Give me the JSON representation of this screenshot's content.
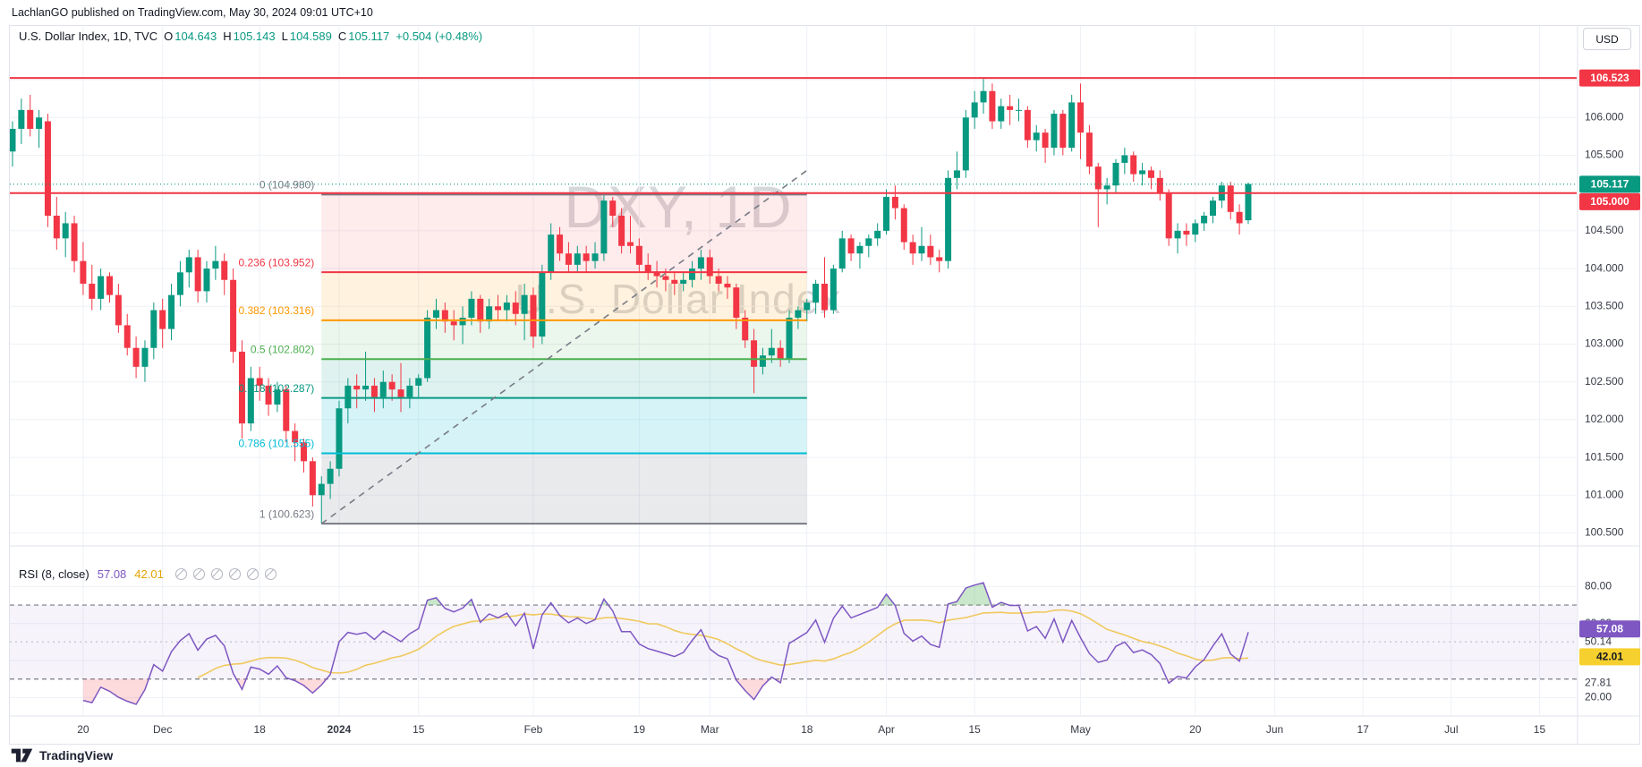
{
  "header": {
    "published_line": "LachlanGO published on TradingView.com, May 30, 2024 09:01 UTC+10"
  },
  "legend": {
    "symbol": "U.S. Dollar Index, 1D, TVC",
    "o_label": "O",
    "o_value": "104.643",
    "h_label": "H",
    "h_value": "105.143",
    "l_label": "L",
    "l_value": "104.589",
    "c_label": "C",
    "c_value": "105.117",
    "change": "+0.504 (+0.48%)"
  },
  "watermark": {
    "line1": "DXY, 1D",
    "line2": "U.S. Dollar Index"
  },
  "currency_button": "USD",
  "rsi_legend": {
    "title": "RSI (8, close)",
    "value": "57.08",
    "ma_value": "42.01",
    "extra_circles": 6
  },
  "footer": {
    "logo_text": "TradingView"
  },
  "colors": {
    "up": "#089981",
    "down": "#f23645",
    "line_red": "#f23645",
    "current_price": "#089981",
    "rsi_line": "#7e57c2",
    "rsi_ma_line": "#f0c95c",
    "rsi_badge": "#7e57c2",
    "rsi_ma_badge": "#f6d02f",
    "grid": "#eef1f7",
    "axis_text": "#363a45",
    "watermark": "#9598a1",
    "border": "#e0e3eb"
  },
  "chart_data": {
    "type": "candlestick",
    "symbol": "U.S. Dollar Index",
    "interval": "1D",
    "exchange": "TVC",
    "ohlc_readout": {
      "open": 104.643,
      "high": 105.143,
      "low": 104.589,
      "close": 105.117,
      "change": "+0.504 (+0.48%)"
    },
    "ylim_main": [
      100.3,
      107.0
    ],
    "candles": [
      [
        105.55,
        105.95,
        105.35,
        105.85
      ],
      [
        105.85,
        106.25,
        105.65,
        106.1
      ],
      [
        106.1,
        106.3,
        105.75,
        105.85
      ],
      [
        105.85,
        106.1,
        105.6,
        106.0
      ],
      [
        105.95,
        106.05,
        104.55,
        104.7
      ],
      [
        104.7,
        104.95,
        104.25,
        104.4
      ],
      [
        104.4,
        104.75,
        104.15,
        104.6
      ],
      [
        104.6,
        104.7,
        103.95,
        104.1
      ],
      [
        104.1,
        104.35,
        103.65,
        103.8
      ],
      [
        103.8,
        104.05,
        103.45,
        103.6
      ],
      [
        103.6,
        104.0,
        103.45,
        103.9
      ],
      [
        103.9,
        103.95,
        103.55,
        103.65
      ],
      [
        103.65,
        103.8,
        103.15,
        103.25
      ],
      [
        103.25,
        103.4,
        102.85,
        102.95
      ],
      [
        102.95,
        103.1,
        102.55,
        102.7
      ],
      [
        102.7,
        103.05,
        102.5,
        102.95
      ],
      [
        102.95,
        103.55,
        102.8,
        103.45
      ],
      [
        103.45,
        103.6,
        102.95,
        103.2
      ],
      [
        103.2,
        103.8,
        103.05,
        103.65
      ],
      [
        103.65,
        104.1,
        103.5,
        103.95
      ],
      [
        103.95,
        104.25,
        103.75,
        104.15
      ],
      [
        104.15,
        104.25,
        103.55,
        103.7
      ],
      [
        103.7,
        104.1,
        103.55,
        104.0
      ],
      [
        104.0,
        104.3,
        103.85,
        104.1
      ],
      [
        104.1,
        104.2,
        103.65,
        103.85
      ],
      [
        103.85,
        104.0,
        102.75,
        102.9
      ],
      [
        102.9,
        103.05,
        101.75,
        101.95
      ],
      [
        101.95,
        102.7,
        101.85,
        102.55
      ],
      [
        102.55,
        102.7,
        102.25,
        102.45
      ],
      [
        102.45,
        102.55,
        102.05,
        102.2
      ],
      [
        102.2,
        102.5,
        102.1,
        102.4
      ],
      [
        102.4,
        102.45,
        101.7,
        101.85
      ],
      [
        101.85,
        101.95,
        101.45,
        101.7
      ],
      [
        101.7,
        101.75,
        101.3,
        101.45
      ],
      [
        101.45,
        101.5,
        100.85,
        101.0
      ],
      [
        101.0,
        101.25,
        100.62,
        101.15
      ],
      [
        101.15,
        101.45,
        100.95,
        101.35
      ],
      [
        101.35,
        102.25,
        101.25,
        102.15
      ],
      [
        102.15,
        102.55,
        101.95,
        102.45
      ],
      [
        102.45,
        102.6,
        102.15,
        102.4
      ],
      [
        102.4,
        102.9,
        102.25,
        102.45
      ],
      [
        102.45,
        102.55,
        102.1,
        102.3
      ],
      [
        102.3,
        102.65,
        102.15,
        102.5
      ],
      [
        102.5,
        102.6,
        102.25,
        102.4
      ],
      [
        102.4,
        102.75,
        102.1,
        102.3
      ],
      [
        102.3,
        102.55,
        102.15,
        102.45
      ],
      [
        102.45,
        102.6,
        102.3,
        102.55
      ],
      [
        102.55,
        103.45,
        102.5,
        103.35
      ],
      [
        103.35,
        103.6,
        103.2,
        103.45
      ],
      [
        103.45,
        103.55,
        103.15,
        103.3
      ],
      [
        103.3,
        103.45,
        103.05,
        103.25
      ],
      [
        103.25,
        103.5,
        103.0,
        103.35
      ],
      [
        103.35,
        103.7,
        103.25,
        103.6
      ],
      [
        103.6,
        103.65,
        103.15,
        103.3
      ],
      [
        103.3,
        103.6,
        103.2,
        103.5
      ],
      [
        103.5,
        103.65,
        103.3,
        103.45
      ],
      [
        103.45,
        103.65,
        103.3,
        103.55
      ],
      [
        103.55,
        103.7,
        103.25,
        103.4
      ],
      [
        103.4,
        103.8,
        103.05,
        103.65
      ],
      [
        103.65,
        103.75,
        102.95,
        103.1
      ],
      [
        103.1,
        104.05,
        103.0,
        103.95
      ],
      [
        103.95,
        104.6,
        103.85,
        104.45
      ],
      [
        104.45,
        104.55,
        104.1,
        104.2
      ],
      [
        104.2,
        104.35,
        103.95,
        104.05
      ],
      [
        104.05,
        104.3,
        103.95,
        104.2
      ],
      [
        104.2,
        104.3,
        103.95,
        104.1
      ],
      [
        104.1,
        104.35,
        104.0,
        104.2
      ],
      [
        104.2,
        104.97,
        104.1,
        104.9
      ],
      [
        104.9,
        104.95,
        104.55,
        104.7
      ],
      [
        104.7,
        104.8,
        104.2,
        104.3
      ],
      [
        104.35,
        104.7,
        104.2,
        104.3
      ],
      [
        104.3,
        104.4,
        103.95,
        104.05
      ],
      [
        104.05,
        104.2,
        103.85,
        103.95
      ],
      [
        103.95,
        104.1,
        103.75,
        103.9
      ],
      [
        103.9,
        104.0,
        103.7,
        103.85
      ],
      [
        103.85,
        103.95,
        103.65,
        103.8
      ],
      [
        103.8,
        103.95,
        103.7,
        103.85
      ],
      [
        103.85,
        104.1,
        103.75,
        104.0
      ],
      [
        104.0,
        104.25,
        103.85,
        104.15
      ],
      [
        104.15,
        104.25,
        103.8,
        103.9
      ],
      [
        103.9,
        104.0,
        103.7,
        103.8
      ],
      [
        103.8,
        103.9,
        103.6,
        103.75
      ],
      [
        103.75,
        103.8,
        103.2,
        103.35
      ],
      [
        103.35,
        103.45,
        102.95,
        103.05
      ],
      [
        103.05,
        103.2,
        102.35,
        102.7
      ],
      [
        102.7,
        102.95,
        102.6,
        102.85
      ],
      [
        102.85,
        103.2,
        102.75,
        102.95
      ],
      [
        102.95,
        103.05,
        102.7,
        102.8
      ],
      [
        102.8,
        103.45,
        102.75,
        103.35
      ],
      [
        103.35,
        103.5,
        103.2,
        103.45
      ],
      [
        103.45,
        103.6,
        103.3,
        103.55
      ],
      [
        103.55,
        103.85,
        103.4,
        103.8
      ],
      [
        103.8,
        104.15,
        103.35,
        103.45
      ],
      [
        103.45,
        104.05,
        103.4,
        104.0
      ],
      [
        104.0,
        104.5,
        103.95,
        104.4
      ],
      [
        104.4,
        104.45,
        104.1,
        104.2
      ],
      [
        104.2,
        104.35,
        104.0,
        104.3
      ],
      [
        104.3,
        104.45,
        104.15,
        104.4
      ],
      [
        104.4,
        104.6,
        104.3,
        104.5
      ],
      [
        104.5,
        105.05,
        104.45,
        104.95
      ],
      [
        104.95,
        105.1,
        104.65,
        104.8
      ],
      [
        104.8,
        104.85,
        104.25,
        104.35
      ],
      [
        104.35,
        104.45,
        104.05,
        104.2
      ],
      [
        104.2,
        104.55,
        104.1,
        104.3
      ],
      [
        104.3,
        104.45,
        104.05,
        104.15
      ],
      [
        104.15,
        104.25,
        103.95,
        104.1
      ],
      [
        104.1,
        105.3,
        104.0,
        105.2
      ],
      [
        105.2,
        105.55,
        105.05,
        105.3
      ],
      [
        105.3,
        106.1,
        105.2,
        106.0
      ],
      [
        106.0,
        106.35,
        105.85,
        106.2
      ],
      [
        106.2,
        106.51,
        106.05,
        106.35
      ],
      [
        106.35,
        106.45,
        105.85,
        105.95
      ],
      [
        105.95,
        106.25,
        105.85,
        106.15
      ],
      [
        106.15,
        106.3,
        105.9,
        106.1
      ],
      [
        106.1,
        106.25,
        105.95,
        106.1
      ],
      [
        106.1,
        106.15,
        105.6,
        105.7
      ],
      [
        105.7,
        105.9,
        105.55,
        105.8
      ],
      [
        105.8,
        105.85,
        105.4,
        105.6
      ],
      [
        105.6,
        106.1,
        105.5,
        106.05
      ],
      [
        106.05,
        106.1,
        105.5,
        105.6
      ],
      [
        105.6,
        106.3,
        105.55,
        106.2
      ],
      [
        106.2,
        106.45,
        105.45,
        105.8
      ],
      [
        105.8,
        105.9,
        105.25,
        105.35
      ],
      [
        105.35,
        105.4,
        104.55,
        105.05
      ],
      [
        105.05,
        105.2,
        104.85,
        105.1
      ],
      [
        105.1,
        105.45,
        105.0,
        105.4
      ],
      [
        105.4,
        105.6,
        105.25,
        105.5
      ],
      [
        105.5,
        105.55,
        105.15,
        105.25
      ],
      [
        105.25,
        105.4,
        105.1,
        105.3
      ],
      [
        105.3,
        105.35,
        105.05,
        105.2
      ],
      [
        105.2,
        105.3,
        104.9,
        105.0
      ],
      [
        105.0,
        105.05,
        104.3,
        104.4
      ],
      [
        104.4,
        104.6,
        104.2,
        104.5
      ],
      [
        104.5,
        104.6,
        104.3,
        104.45
      ],
      [
        104.45,
        104.65,
        104.35,
        104.6
      ],
      [
        104.6,
        104.75,
        104.5,
        104.7
      ],
      [
        104.7,
        104.95,
        104.6,
        104.9
      ],
      [
        104.9,
        105.15,
        104.8,
        105.1
      ],
      [
        105.1,
        105.15,
        104.65,
        104.75
      ],
      [
        104.75,
        104.85,
        104.45,
        104.6
      ],
      [
        104.64,
        105.14,
        104.59,
        105.12
      ]
    ],
    "fib": {
      "start_index": 35,
      "end_index": 90,
      "trend_to_price": 105.3,
      "levels": [
        {
          "ratio": "0",
          "value": "104.980",
          "price": 104.98,
          "color": "#787b86"
        },
        {
          "ratio": "0.236",
          "value": "103.952",
          "price": 103.952,
          "color": "#f23645"
        },
        {
          "ratio": "0.382",
          "value": "103.316",
          "price": 103.316,
          "color": "#ff9800"
        },
        {
          "ratio": "0.5",
          "value": "102.802",
          "price": 102.802,
          "color": "#4caf50"
        },
        {
          "ratio": "0.618",
          "value": "102.287",
          "price": 102.287,
          "color": "#089981"
        },
        {
          "ratio": "0.786",
          "value": "101.555",
          "price": 101.555,
          "color": "#00bcd4"
        },
        {
          "ratio": "1",
          "value": "100.623",
          "price": 100.623,
          "color": "#787b86"
        }
      ],
      "zone_fills": [
        "rgba(242,54,69,0.10)",
        "rgba(255,152,0,0.13)",
        "rgba(76,175,80,0.11)",
        "rgba(8,153,129,0.13)",
        "rgba(0,188,212,0.16)",
        "rgba(120,123,134,0.16)"
      ]
    },
    "hlines": [
      {
        "price": 106.523,
        "color": "#f23645"
      },
      {
        "price": 105.0,
        "color": "#f23645"
      }
    ],
    "last_price_line": {
      "price": 105.117,
      "color": "#089981",
      "style": "dotted"
    },
    "price_axis": {
      "ticks": [
        {
          "v": 106.0,
          "label": "106.000"
        },
        {
          "v": 105.5,
          "label": "105.500"
        },
        {
          "v": 104.5,
          "label": "104.500"
        },
        {
          "v": 104.0,
          "label": "104.000"
        },
        {
          "v": 103.5,
          "label": "103.500"
        },
        {
          "v": 103.0,
          "label": "103.000"
        },
        {
          "v": 102.5,
          "label": "102.500"
        },
        {
          "v": 102.0,
          "label": "102.000"
        },
        {
          "v": 101.5,
          "label": "101.500"
        },
        {
          "v": 101.0,
          "label": "101.000"
        },
        {
          "v": 100.5,
          "label": "100.500"
        }
      ],
      "grid": [
        106.5,
        106.0,
        105.5,
        105.0,
        104.5,
        104.0,
        103.5,
        103.0,
        102.5,
        102.0,
        101.5,
        101.0,
        100.5
      ],
      "badges": [
        {
          "label": "106.523",
          "bg": "#f23645",
          "fg": "#ffffff",
          "price": 106.523
        },
        {
          "label": "105.117",
          "bg": "#089981",
          "fg": "#ffffff",
          "price": 105.117
        },
        {
          "label": "105.000",
          "bg": "#f23645",
          "fg": "#ffffff",
          "price": 105.0,
          "stack_below_prev": true
        }
      ]
    },
    "rsi": {
      "period": 8,
      "source": "close",
      "value": 57.08,
      "ma_value": 42.01,
      "upper_band": 70,
      "lower_band": 30,
      "middle_band": 50.14,
      "grid": [
        80,
        60,
        40,
        20
      ],
      "ticks": [
        {
          "v": 80,
          "label": "80.00"
        },
        {
          "v": 60,
          "label": "60.00",
          "partially_hidden": true
        },
        {
          "v": 50.14,
          "label": "50.14"
        },
        {
          "v": 27.81,
          "label": "27.81"
        },
        {
          "v": 20,
          "label": "20.00"
        }
      ],
      "badges": [
        {
          "label": "57.08",
          "bg": "#7e57c2",
          "fg": "#ffffff",
          "value": 57.08
        },
        {
          "label": "42.01",
          "bg": "#f6d02f",
          "fg": "#131722",
          "value": 42.01
        }
      ]
    },
    "time_axis": {
      "ticks": [
        {
          "label": "20",
          "i": 8
        },
        {
          "label": "Dec",
          "i": 17
        },
        {
          "label": "18",
          "i": 28
        },
        {
          "label": "2024",
          "i": 37,
          "bold": true
        },
        {
          "label": "15",
          "i": 46
        },
        {
          "label": "Feb",
          "i": 59
        },
        {
          "label": "19",
          "i": 71
        },
        {
          "label": "Mar",
          "i": 79
        },
        {
          "label": "18",
          "i": 90
        },
        {
          "label": "Apr",
          "i": 99
        },
        {
          "label": "15",
          "i": 109
        },
        {
          "label": "May",
          "i": 121
        },
        {
          "label": "20",
          "i": 134
        },
        {
          "label": "Jun",
          "i": 143
        },
        {
          "label": "17",
          "i": 153
        },
        {
          "label": "Jul",
          "i": 163
        },
        {
          "label": "15",
          "i": 173
        }
      ]
    }
  }
}
